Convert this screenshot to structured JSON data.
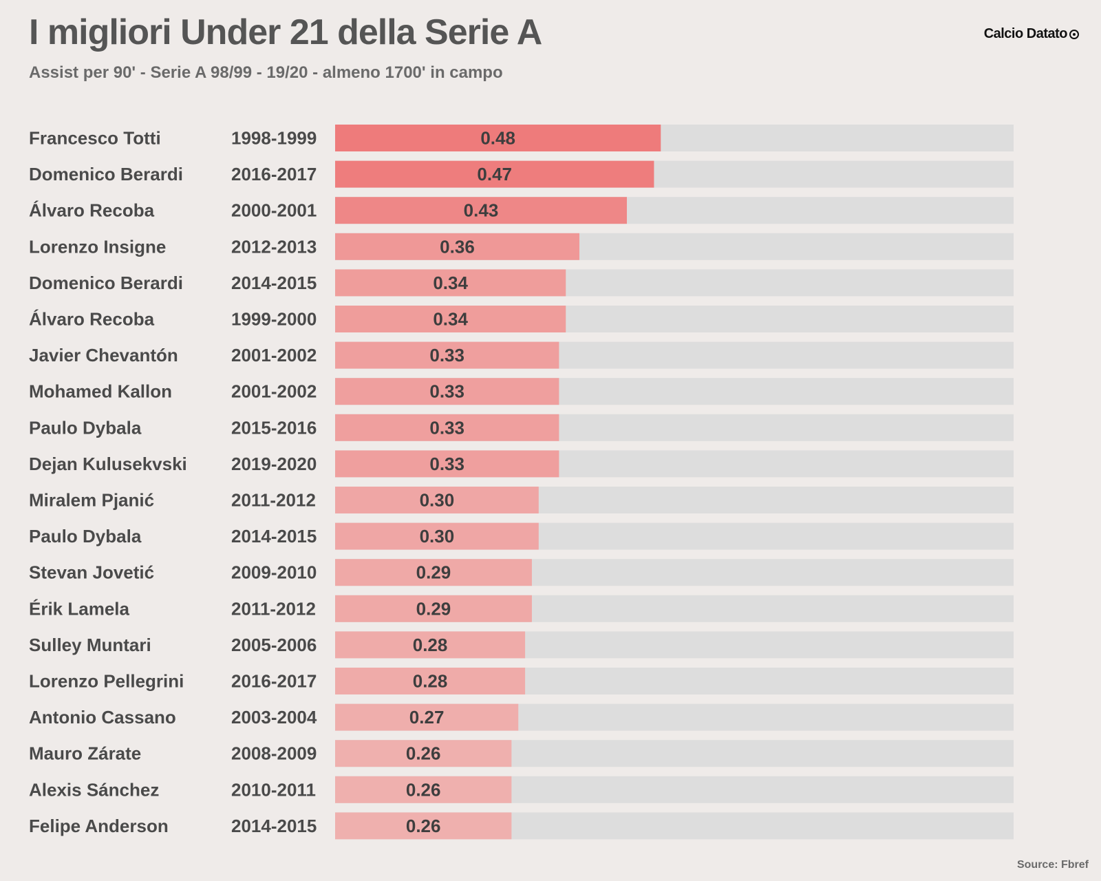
{
  "header": {
    "title": "I migliori Under 21 della Serie A",
    "subtitle": "Assist per 90' - Serie A 98/99 - 19/20 - almeno 1700' in campo",
    "brand": "Calcio Datato",
    "brand_icon": "soccer-ball-icon"
  },
  "footer": {
    "source": "Source: Fbref"
  },
  "colors": {
    "background": "#efebe9",
    "track": "#dddddd",
    "bar_max": "#ee7b7b",
    "bar_min": "#efb0ae",
    "text": "#4a4a4a"
  },
  "chart_data": {
    "type": "bar",
    "orientation": "horizontal",
    "title": "I migliori Under 21 della Serie A",
    "subtitle": "Assist per 90' - Serie A 98/99 - 19/20 - almeno 1700' in campo",
    "xlim": [
      0,
      1.0
    ],
    "grid": false,
    "legend": "none",
    "rows": [
      {
        "player": "Francesco Totti",
        "season": "1998-1999",
        "value": 0.48,
        "label": "0.48"
      },
      {
        "player": "Domenico Berardi",
        "season": "2016-2017",
        "value": 0.47,
        "label": "0.47"
      },
      {
        "player": "Álvaro Recoba",
        "season": "2000-2001",
        "value": 0.43,
        "label": "0.43"
      },
      {
        "player": "Lorenzo Insigne",
        "season": "2012-2013",
        "value": 0.36,
        "label": "0.36"
      },
      {
        "player": "Domenico Berardi",
        "season": "2014-2015",
        "value": 0.34,
        "label": "0.34"
      },
      {
        "player": "Álvaro Recoba",
        "season": "1999-2000",
        "value": 0.34,
        "label": "0.34"
      },
      {
        "player": "Javier Chevantón",
        "season": "2001-2002",
        "value": 0.33,
        "label": "0.33"
      },
      {
        "player": "Mohamed Kallon",
        "season": "2001-2002",
        "value": 0.33,
        "label": "0.33"
      },
      {
        "player": "Paulo Dybala",
        "season": "2015-2016",
        "value": 0.33,
        "label": "0.33"
      },
      {
        "player": "Dejan Kulusekvski",
        "season": "2019-2020",
        "value": 0.33,
        "label": "0.33"
      },
      {
        "player": "Miralem Pjanić",
        "season": "2011-2012",
        "value": 0.3,
        "label": "0.30"
      },
      {
        "player": "Paulo Dybala",
        "season": "2014-2015",
        "value": 0.3,
        "label": "0.30"
      },
      {
        "player": "Stevan Jovetić",
        "season": "2009-2010",
        "value": 0.29,
        "label": "0.29"
      },
      {
        "player": "Érik Lamela",
        "season": "2011-2012",
        "value": 0.29,
        "label": "0.29"
      },
      {
        "player": "Sulley Muntari",
        "season": "2005-2006",
        "value": 0.28,
        "label": "0.28"
      },
      {
        "player": "Lorenzo Pellegrini",
        "season": "2016-2017",
        "value": 0.28,
        "label": "0.28"
      },
      {
        "player": "Antonio Cassano",
        "season": "2003-2004",
        "value": 0.27,
        "label": "0.27"
      },
      {
        "player": "Mauro Zárate",
        "season": "2008-2009",
        "value": 0.26,
        "label": "0.26"
      },
      {
        "player": "Alexis Sánchez",
        "season": "2010-2011",
        "value": 0.26,
        "label": "0.26"
      },
      {
        "player": "Felipe Anderson",
        "season": "2014-2015",
        "value": 0.26,
        "label": "0.26"
      }
    ]
  }
}
